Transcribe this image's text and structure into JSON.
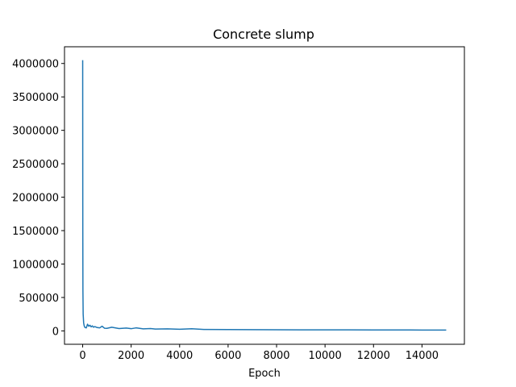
{
  "chart_data": {
    "type": "line",
    "title": "Concrete slump",
    "xlabel": "Epoch",
    "ylabel": "",
    "xlim": [
      -750,
      15750
    ],
    "ylim": [
      -200000,
      4250000
    ],
    "x_ticks": [
      0,
      2000,
      4000,
      6000,
      8000,
      10000,
      12000,
      14000
    ],
    "x_tick_labels": [
      "0",
      "2000",
      "4000",
      "6000",
      "8000",
      "10000",
      "12000",
      "14000"
    ],
    "y_ticks": [
      0,
      500000,
      1000000,
      1500000,
      2000000,
      2500000,
      3000000,
      3500000,
      4000000
    ],
    "y_tick_labels": [
      "0",
      "500000",
      "1000000",
      "1500000",
      "2000000",
      "2500000",
      "3000000",
      "3500000",
      "4000000"
    ],
    "grid": false,
    "legend": "none",
    "series": [
      {
        "color": "#1f77b4",
        "x": [
          0,
          5,
          10,
          20,
          40,
          60,
          80,
          100,
          150,
          200,
          250,
          300,
          350,
          400,
          450,
          500,
          600,
          700,
          800,
          900,
          1000,
          1200,
          1500,
          1800,
          2000,
          2200,
          2500,
          2800,
          3000,
          3500,
          4000,
          4500,
          5000,
          6000,
          7000,
          8000,
          9000,
          10000,
          11000,
          12000,
          13000,
          14000,
          15000
        ],
        "y": [
          4050000,
          1500000,
          600000,
          250000,
          120000,
          80000,
          60000,
          50000,
          45000,
          100000,
          70000,
          85000,
          60000,
          75000,
          55000,
          65000,
          50000,
          45000,
          70000,
          40000,
          38000,
          55000,
          35000,
          42000,
          33000,
          45000,
          30000,
          35000,
          28000,
          30000,
          25000,
          32000,
          22000,
          20000,
          18000,
          17000,
          16000,
          15000,
          15000,
          14000,
          14000,
          13000,
          13000
        ]
      }
    ]
  }
}
